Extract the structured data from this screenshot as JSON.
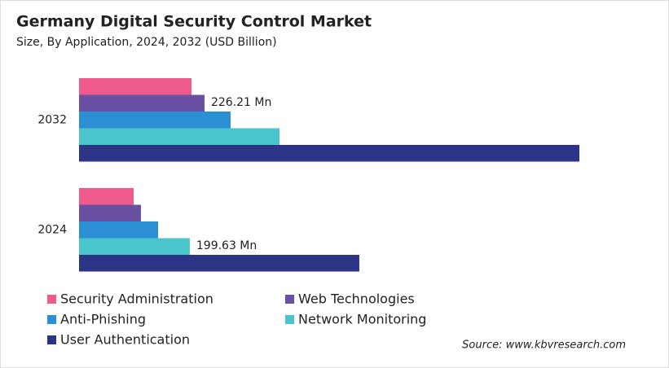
{
  "chart_data": {
    "type": "hbar",
    "title": "Germany Digital Security Control Market",
    "subtitle": "Size, By Application, 2024, 2032 (USD Billion)",
    "source": "Source: www.kbvresearch.com",
    "categories": [
      "2032",
      "2024"
    ],
    "series": [
      {
        "name": "Security Administration",
        "color": "#ee5a8b",
        "values": [
          202.7,
          98.4
        ]
      },
      {
        "name": "Web Technologies",
        "color": "#6a50a3",
        "values": [
          226.21,
          111.6
        ],
        "value_labels": [
          "226.21 Mn",
          null
        ]
      },
      {
        "name": "Anti-Phishing",
        "color": "#2d8fd3",
        "values": [
          273.2,
          142.5
        ]
      },
      {
        "name": "Network Monitoring",
        "color": "#4ac5cb",
        "values": [
          361.4,
          199.63
        ],
        "value_labels": [
          null,
          "199.63 Mn"
        ]
      },
      {
        "name": "User Authentication",
        "color": "#2c3585",
        "values": [
          902.0,
          505.3
        ]
      }
    ],
    "legend": "bottom"
  }
}
